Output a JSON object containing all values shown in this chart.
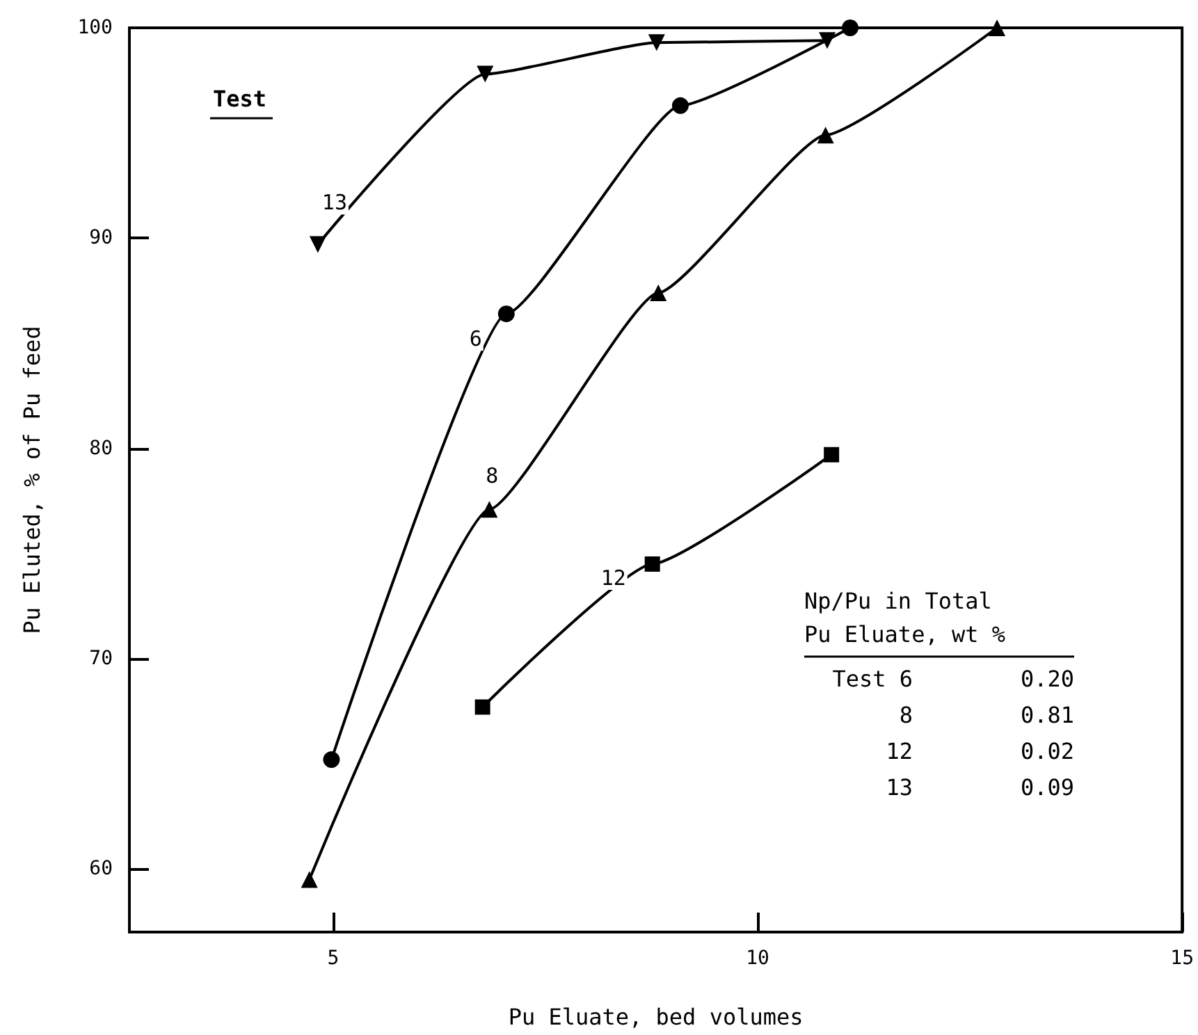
{
  "chart_data": {
    "type": "line",
    "xlabel": "Pu Eluate, bed volumes",
    "ylabel": "Pu Eluted, % of Pu feed",
    "xlim": [
      2.6,
      15
    ],
    "xticks": [
      5,
      10,
      15
    ],
    "ylim": [
      57,
      100
    ],
    "yticks": [
      60,
      70,
      80,
      90,
      100
    ],
    "grid": false,
    "legend": false,
    "line_style": "solid",
    "series": [
      {
        "name": "13",
        "color": "#000000",
        "marker": "triangle-down",
        "x": [
          4.82,
          6.79,
          8.81,
          10.82
        ],
        "values": [
          89.7,
          97.8,
          99.3,
          99.4
        ]
      },
      {
        "name": "6",
        "color": "#000000",
        "marker": "circle",
        "x": [
          4.98,
          7.04,
          9.09,
          11.09
        ],
        "values": [
          65.2,
          86.4,
          96.3,
          100
        ]
      },
      {
        "name": "8",
        "color": "#000000",
        "marker": "triangle",
        "x": [
          4.72,
          6.84,
          8.83,
          10.8,
          12.82
        ],
        "values": [
          59.5,
          77.1,
          87.4,
          94.9,
          100
        ]
      },
      {
        "name": "12",
        "color": "#000000",
        "marker": "square",
        "x": [
          6.76,
          8.76,
          10.87
        ],
        "values": [
          67.7,
          74.5,
          79.7
        ]
      }
    ],
    "annotations": [
      "Test",
      "Np/Pu in Total",
      "Pu Eluate, wt %",
      "Test 6 0.20",
      "8 0.81",
      "12 0.02",
      "13 0.09"
    ]
  }
}
